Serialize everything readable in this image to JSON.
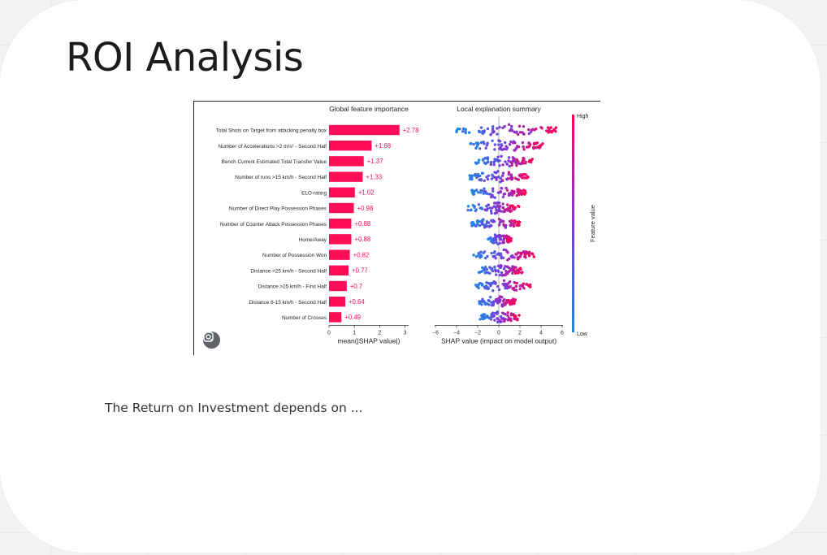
{
  "slide": {
    "title": "ROI Analysis",
    "body_text": "The Return on Investment depends on ..."
  },
  "figure": {
    "lens_icon": "google-lens-icon",
    "bar_color": "#ff0d57",
    "low_color": "#1e88e5",
    "high_color": "#ff0052"
  },
  "chart_data": [
    {
      "type": "bar",
      "orientation": "horizontal",
      "title": "Global feature importance",
      "xlabel": "mean(|SHAP value|)",
      "xlim": [
        0,
        3
      ],
      "xticks": [
        "0",
        "1",
        "2",
        "3"
      ],
      "categories": [
        "Total Shots on Target from attacking penalty box",
        "Number of Accelerations >2 m/s² - Second Half",
        "Bench Current Estimated Total Transfer Value",
        "Number of runs >15 km/h - Second Half",
        "ELO-rating",
        "Number of Direct Play Possession Phases",
        "Number of Counter Attack Possession Phases",
        "Home/Away",
        "Number of Possession Won",
        "Distance >25 km/h - Second Half",
        "Distance >25 km/h - First Half",
        "Distance 6-15 km/h - Second Half",
        "Number of Crosses"
      ],
      "values": [
        2.78,
        1.68,
        1.37,
        1.33,
        1.02,
        0.98,
        0.88,
        0.88,
        0.82,
        0.77,
        0.7,
        0.64,
        0.49
      ],
      "value_labels": [
        "+2.78",
        "+1.68",
        "+1.37",
        "+1.33",
        "+1.02",
        "+0.98",
        "+0.88",
        "+0.88",
        "+0.82",
        "+0.77",
        "+0.7",
        "+0.64",
        "+0.49"
      ]
    },
    {
      "type": "scatter",
      "subtype": "beeswarm",
      "title": "Local explanation summary",
      "xlabel": "SHAP value (impact on model output)",
      "xlim": [
        -6,
        6
      ],
      "xticks": [
        "−6",
        "−4",
        "−2",
        "0",
        "2",
        "4",
        "6"
      ],
      "colorbar": {
        "label": "Feature value",
        "high": "High",
        "low": "Low"
      },
      "series": [
        {
          "spread_low": -4.0,
          "spread_high": 5.8
        },
        {
          "spread_low": -3.0,
          "spread_high": 4.2
        },
        {
          "spread_low": -2.2,
          "spread_high": 3.2
        },
        {
          "spread_low": -2.8,
          "spread_high": 2.8
        },
        {
          "spread_low": -2.6,
          "spread_high": 2.6
        },
        {
          "spread_low": -3.0,
          "spread_high": 2.0
        },
        {
          "spread_low": -2.6,
          "spread_high": 2.0
        },
        {
          "spread_low": -1.0,
          "spread_high": 1.2
        },
        {
          "spread_low": -2.4,
          "spread_high": 3.4
        },
        {
          "spread_low": -2.0,
          "spread_high": 2.4
        },
        {
          "spread_low": -2.2,
          "spread_high": 3.0
        },
        {
          "spread_low": -2.0,
          "spread_high": 1.6
        },
        {
          "spread_low": -1.8,
          "spread_high": 2.0
        }
      ]
    }
  ]
}
